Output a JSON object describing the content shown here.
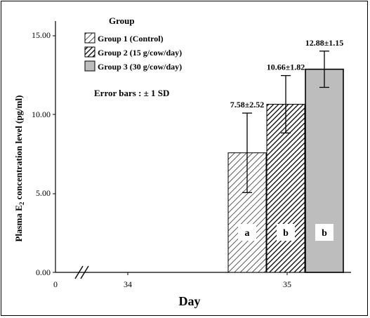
{
  "chart_data": {
    "type": "bar",
    "xlabel": "Day",
    "ylabel_main": "Plasma E",
    "ylabel_sub": "2",
    "ylabel_rest": " concentration level (pg/ml)",
    "y_ticks": [
      "0.00",
      "5.00",
      "10.00",
      "15.00"
    ],
    "ylim": [
      0,
      16.5
    ],
    "x_ticks": [
      "0",
      "34",
      "35"
    ],
    "legend": {
      "title": "Group",
      "placement": "top-left",
      "items": [
        {
          "label": "Group 1 (Control)",
          "pattern": "hatch-light"
        },
        {
          "label": "Group 2 (15 g/cow/day)",
          "pattern": "hatch-dark"
        },
        {
          "label": "Group 3 (30 g/cow/day)",
          "pattern": "solid-gray"
        }
      ]
    },
    "error_note": "Error bars : ± 1 SD",
    "category": "35",
    "series": [
      {
        "name": "Group 1 (Control)",
        "value": 7.58,
        "sd": 2.52,
        "label": "7.58±2.52",
        "letter": "a"
      },
      {
        "name": "Group 2 (15 g/cow/day)",
        "value": 10.66,
        "sd": 1.82,
        "label": "10.66±1.82",
        "letter": "b"
      },
      {
        "name": "Group 3 (30 g/cow/day)",
        "value": 12.88,
        "sd": 1.15,
        "label": "12.88±1.15",
        "letter": "b"
      }
    ],
    "colors": {
      "gray_fill": "#bdbdbd",
      "hatch": "#000000"
    }
  }
}
